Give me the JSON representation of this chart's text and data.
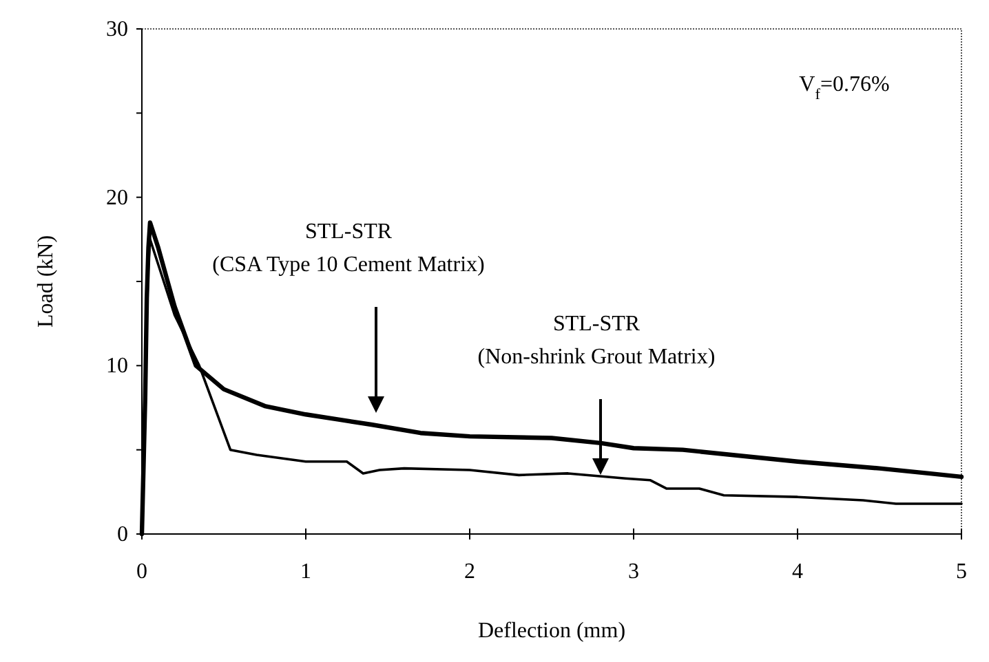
{
  "chart_data": {
    "type": "line",
    "xlabel": "Deflection (mm)",
    "ylabel": "Load (kN)",
    "xlim": [
      0,
      5
    ],
    "xticks": [
      0,
      1,
      2,
      3,
      4,
      5
    ],
    "ylim": [
      0,
      30
    ],
    "yticks": [
      0,
      {
        "value": 5,
        "label": null
      },
      10,
      {
        "value": 15,
        "label": null
      },
      20,
      {
        "value": 25,
        "label": null
      },
      30
    ],
    "grid": false,
    "marker": "none",
    "line_style": "solid",
    "series": [
      {
        "color": "#000000",
        "x": [
          0,
          0.02,
          0.03,
          0.04,
          0.05,
          0.1,
          0.2,
          0.33,
          0.5,
          0.75,
          1.0,
          1.2,
          1.4,
          1.7,
          2.0,
          2.5,
          2.8,
          3.0,
          3.3,
          3.7,
          4.0,
          4.5,
          4.8,
          5.0
        ],
        "values": [
          0,
          8,
          14,
          17,
          18.5,
          17,
          13.5,
          10,
          8.6,
          7.6,
          7.1,
          6.8,
          6.5,
          6.0,
          5.8,
          5.7,
          5.4,
          5.1,
          5.0,
          4.6,
          4.3,
          3.9,
          3.6,
          3.4
        ]
      },
      {
        "color": "#000000",
        "x": [
          0,
          0.02,
          0.03,
          0.04,
          0.05,
          0.1,
          0.2,
          0.35,
          0.54,
          0.7,
          1.0,
          1.25,
          1.35,
          1.45,
          1.6,
          2.0,
          2.3,
          2.6,
          2.95,
          3.1,
          3.2,
          3.4,
          3.55,
          4.0,
          4.4,
          4.6,
          5.0
        ],
        "values": [
          0,
          7,
          13,
          16,
          17.5,
          16,
          13,
          10,
          5.0,
          4.7,
          4.3,
          4.3,
          3.6,
          3.8,
          3.9,
          3.8,
          3.5,
          3.6,
          3.3,
          3.2,
          2.7,
          2.7,
          2.3,
          2.2,
          2.0,
          1.8,
          1.8
        ]
      }
    ],
    "annotations": [
      "STL-STR\n(CSA Type 10 Cement Matrix)",
      "STL-STR\n(Non-shrink Grout Matrix)",
      "V$_{f}$=0.76%"
    ]
  }
}
